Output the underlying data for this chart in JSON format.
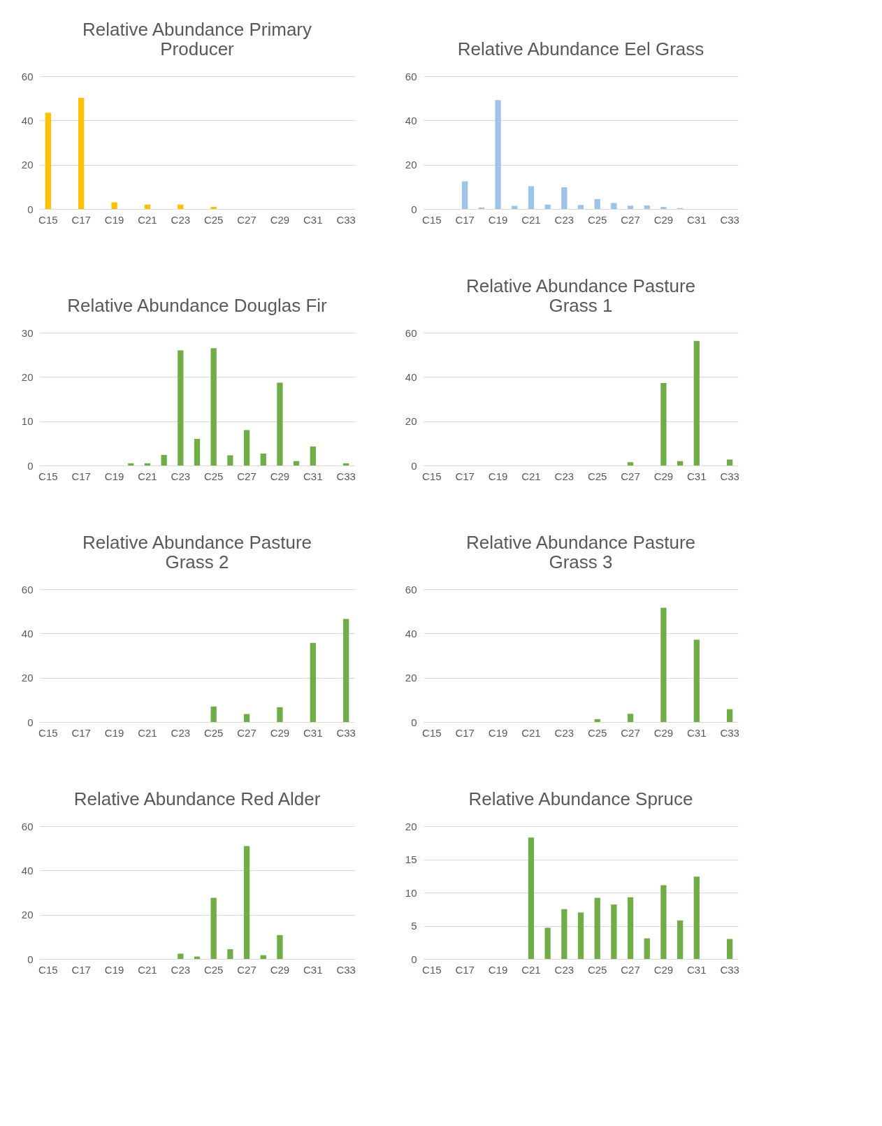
{
  "chart_data": [
    {
      "type": "bar",
      "title": "Relative Abundance Primary Producer",
      "categories": [
        "C15",
        null,
        "C17",
        null,
        "C19",
        null,
        "C21",
        null,
        "C23",
        null,
        "C25",
        null,
        "C27",
        null,
        "C29",
        null,
        "C31",
        null,
        "C33"
      ],
      "series": [
        {
          "color": "#ffc000",
          "values": [
            43.5,
            null,
            50.2,
            null,
            3,
            null,
            2,
            null,
            2,
            null,
            1,
            null,
            null,
            null,
            null,
            null,
            null,
            null,
            null
          ]
        }
      ],
      "ylim": [
        0,
        60
      ],
      "yticks": [
        0,
        20,
        40,
        60
      ],
      "grid": "y"
    },
    {
      "type": "bar",
      "title": "Relative Abundance  Eel Grass",
      "categories": [
        "C15",
        null,
        "C17",
        null,
        "C19",
        null,
        "C21",
        null,
        "C23",
        null,
        "C25",
        null,
        "C27",
        null,
        "C29",
        null,
        "C31",
        null,
        "C33"
      ],
      "series": [
        {
          "color": "#9dc3e6",
          "values": [
            null,
            null,
            12.5,
            0.7,
            49.2,
            1.4,
            10.3,
            2,
            9.8,
            1.8,
            4.5,
            2.7,
            1.5,
            1.6,
            0.9,
            0.4,
            null,
            null,
            null
          ]
        }
      ],
      "ylim": [
        0,
        60
      ],
      "yticks": [
        0,
        20,
        40,
        60
      ],
      "grid": "y"
    },
    {
      "type": "bar",
      "title": "Relative Abundance Douglas Fir",
      "categories": [
        "C15",
        null,
        "C17",
        null,
        "C19",
        null,
        "C21",
        null,
        "C23",
        null,
        "C25",
        null,
        "C27",
        null,
        "C29",
        null,
        "C31",
        null,
        "C33"
      ],
      "series": [
        {
          "color": "#70ad47",
          "values": [
            null,
            null,
            null,
            null,
            null,
            0.5,
            0.5,
            2.4,
            26,
            6,
            26.5,
            2.3,
            8,
            2.7,
            18.7,
            1,
            4.3,
            null,
            0.5
          ]
        }
      ],
      "ylim": [
        0,
        30
      ],
      "yticks": [
        0,
        10,
        20,
        30
      ],
      "grid": "y"
    },
    {
      "type": "bar",
      "title": "Relative Abundance Pasture Grass 1",
      "categories": [
        "C15",
        null,
        "C17",
        null,
        "C19",
        null,
        "C21",
        null,
        "C23",
        null,
        "C25",
        null,
        "C27",
        null,
        "C29",
        null,
        "C31",
        null,
        "C33"
      ],
      "series": [
        {
          "color": "#70ad47",
          "values": [
            null,
            null,
            null,
            null,
            null,
            null,
            null,
            null,
            null,
            null,
            null,
            null,
            1.5,
            null,
            37.3,
            2,
            56.3,
            null,
            2.7
          ]
        }
      ],
      "ylim": [
        0,
        60
      ],
      "yticks": [
        0,
        20,
        40,
        60
      ],
      "grid": "y"
    },
    {
      "type": "bar",
      "title": "Relative Abundance Pasture Grass 2",
      "categories": [
        "C15",
        null,
        "C17",
        null,
        "C19",
        null,
        "C21",
        null,
        "C23",
        null,
        "C25",
        null,
        "C27",
        null,
        "C29",
        null,
        "C31",
        null,
        "C33"
      ],
      "series": [
        {
          "color": "#70ad47",
          "values": [
            null,
            null,
            null,
            null,
            null,
            null,
            null,
            null,
            null,
            null,
            7,
            null,
            3.6,
            null,
            6.7,
            null,
            35.8,
            null,
            46.6
          ]
        }
      ],
      "ylim": [
        0,
        60
      ],
      "yticks": [
        0,
        20,
        40,
        60
      ],
      "grid": "y"
    },
    {
      "type": "bar",
      "title": "Relative Abundance Pasture Grass 3",
      "categories": [
        "C15",
        null,
        "C17",
        null,
        "C19",
        null,
        "C21",
        null,
        "C23",
        null,
        "C25",
        null,
        "C27",
        null,
        "C29",
        null,
        "C31",
        null,
        "C33"
      ],
      "series": [
        {
          "color": "#70ad47",
          "values": [
            null,
            null,
            null,
            null,
            null,
            null,
            null,
            null,
            null,
            null,
            1.3,
            null,
            3.7,
            null,
            51.6,
            null,
            37.2,
            null,
            5.8
          ]
        }
      ],
      "ylim": [
        0,
        60
      ],
      "yticks": [
        0,
        20,
        40,
        60
      ],
      "grid": "y"
    },
    {
      "type": "bar",
      "title": "Relative Abundance Red Alder",
      "categories": [
        "C15",
        null,
        "C17",
        null,
        "C19",
        null,
        "C21",
        null,
        "C23",
        null,
        "C25",
        null,
        "C27",
        null,
        "C29",
        null,
        "C31",
        null,
        "C33"
      ],
      "series": [
        {
          "color": "#70ad47",
          "values": [
            null,
            null,
            null,
            null,
            null,
            null,
            null,
            null,
            2.4,
            1.1,
            27.6,
            4.4,
            51,
            1.7,
            10.8,
            null,
            null,
            null,
            null
          ]
        }
      ],
      "ylim": [
        0,
        60
      ],
      "yticks": [
        0,
        20,
        40,
        60
      ],
      "grid": "y"
    },
    {
      "type": "bar",
      "title": "Relative Abundance  Spruce",
      "categories": [
        "C15",
        null,
        "C17",
        null,
        "C19",
        null,
        "C21",
        null,
        "C23",
        null,
        "C25",
        null,
        "C27",
        null,
        "C29",
        null,
        "C31",
        null,
        "C33"
      ],
      "series": [
        {
          "color": "#70ad47",
          "values": [
            null,
            null,
            null,
            null,
            null,
            null,
            18.3,
            4.7,
            7.5,
            7,
            9.2,
            8.2,
            9.3,
            3.1,
            11.1,
            5.8,
            12.4,
            null,
            3.0
          ]
        }
      ],
      "ylim": [
        0,
        20
      ],
      "yticks": [
        0,
        5,
        10,
        15,
        20
      ],
      "grid": "y"
    }
  ]
}
